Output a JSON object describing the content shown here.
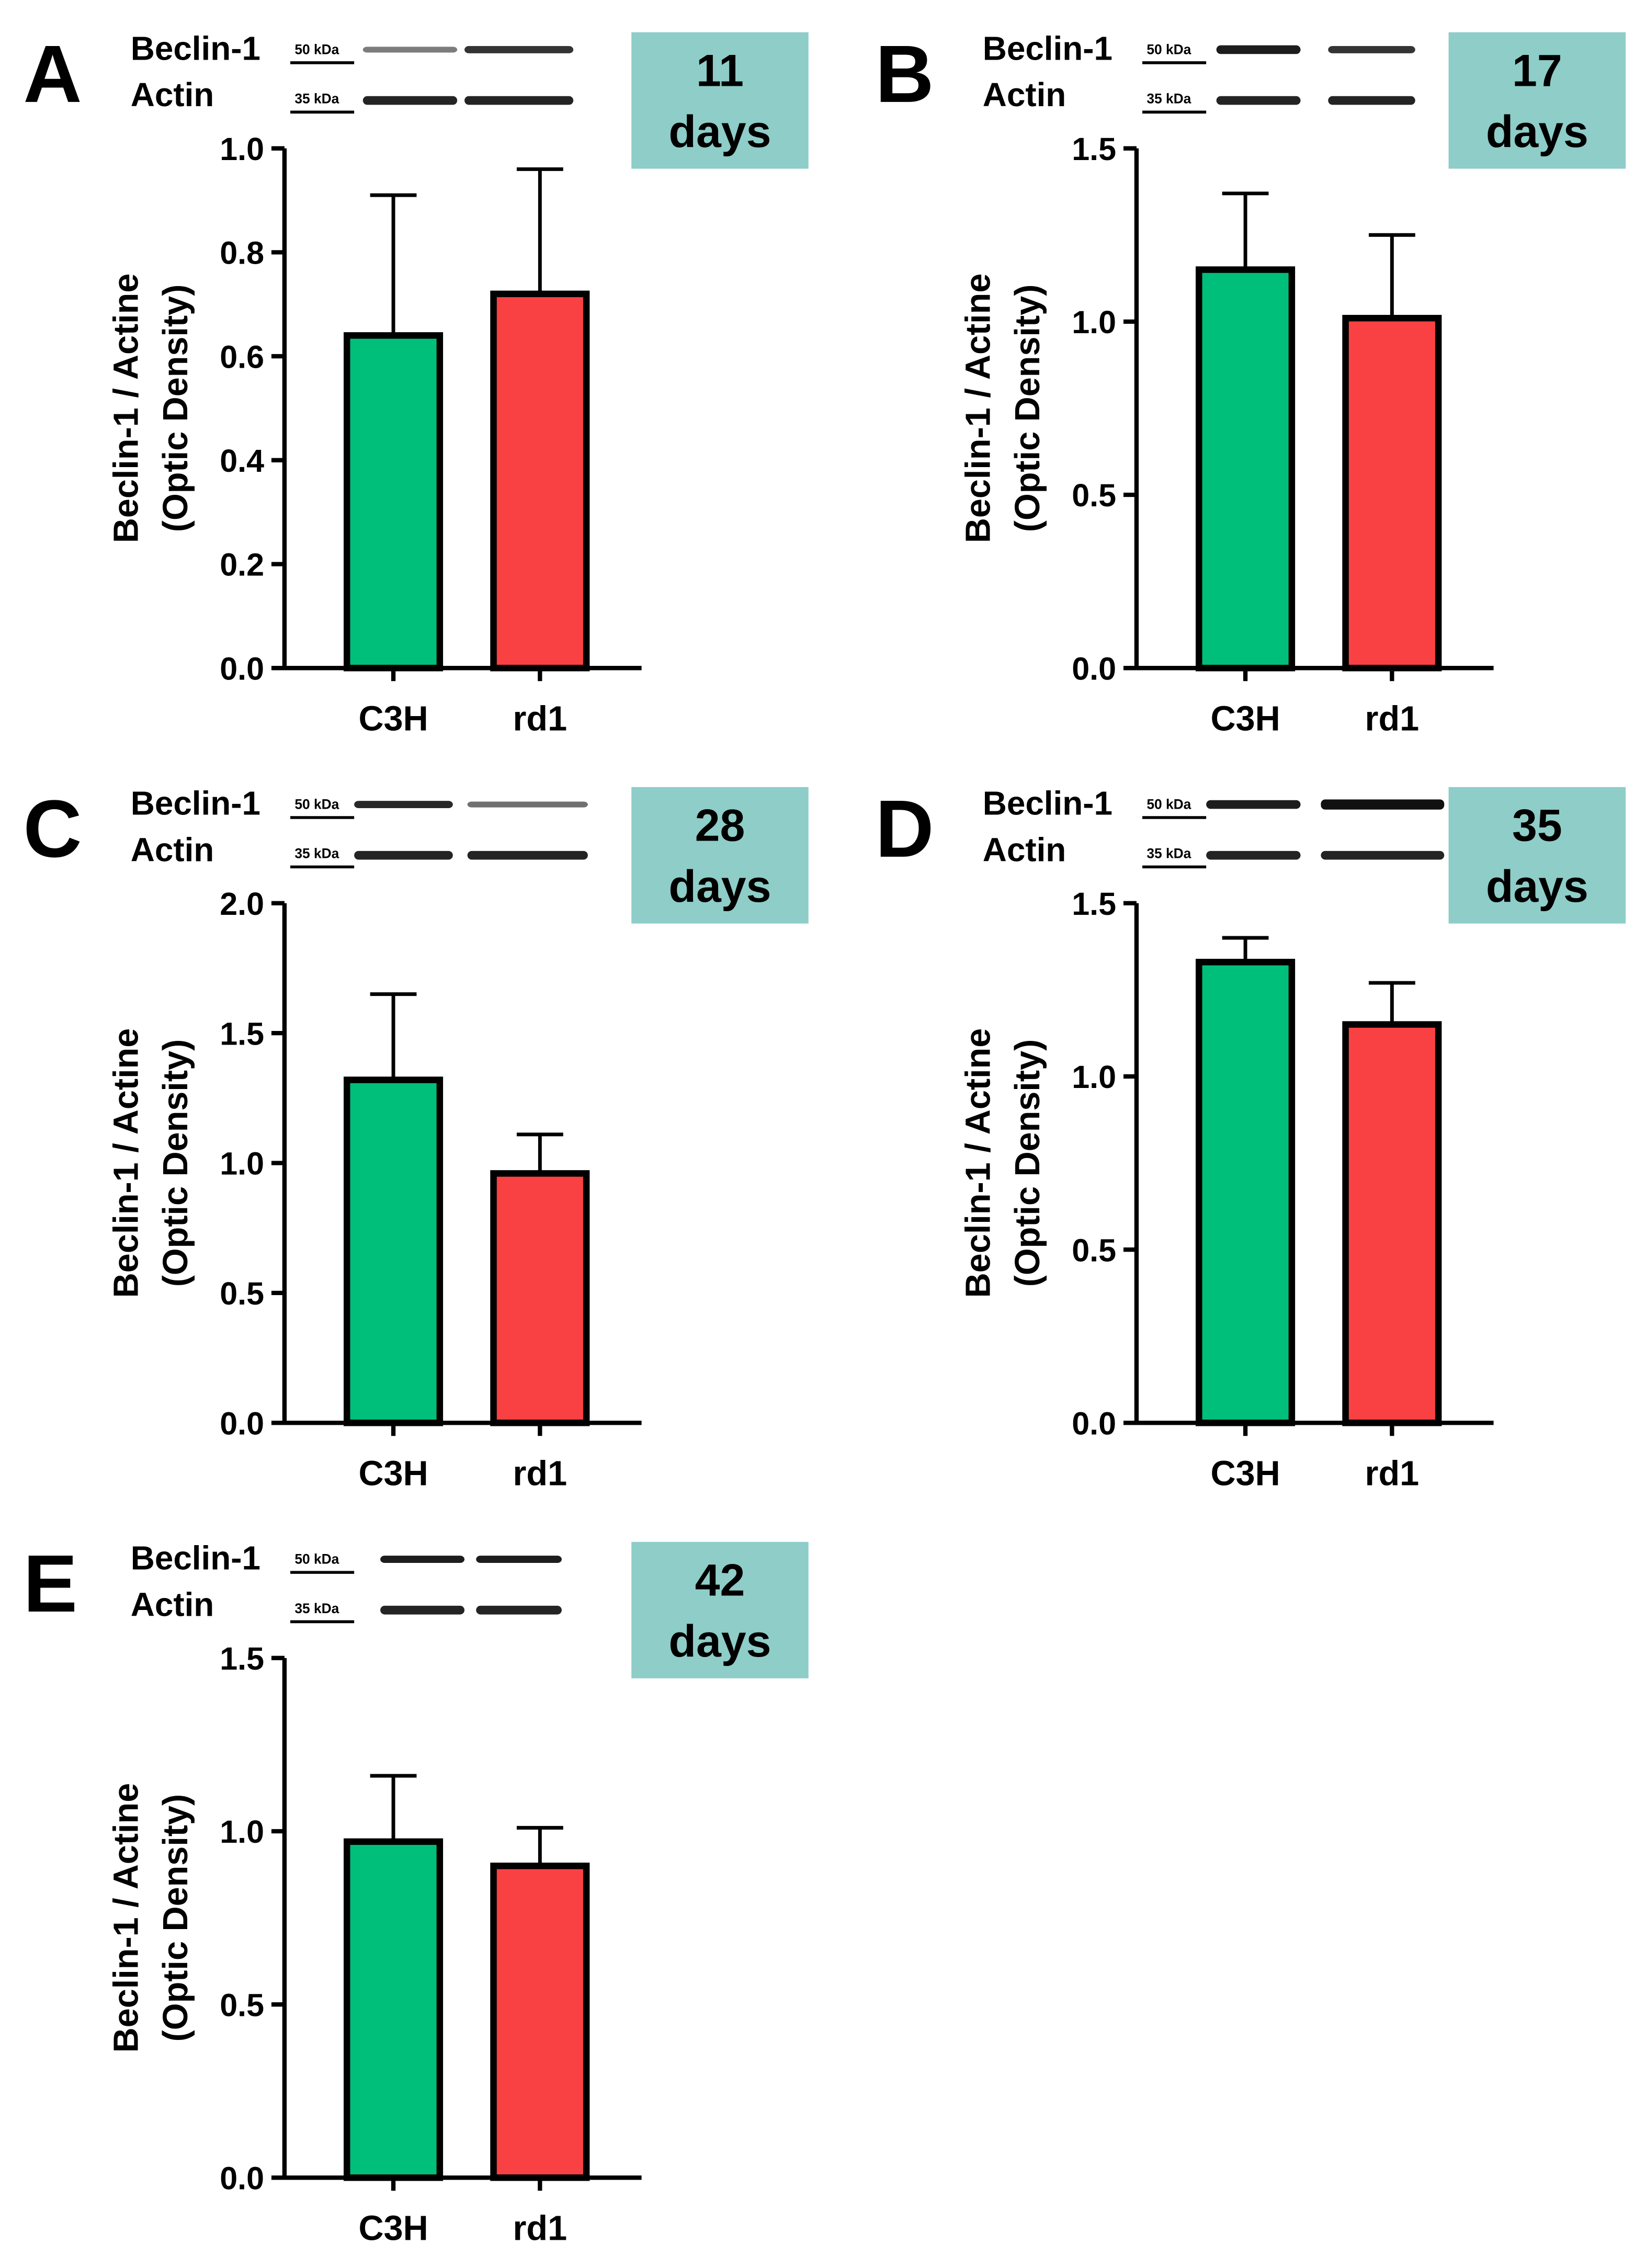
{
  "colors": {
    "c3h_bar": "#00bf7a",
    "rd1_bar": "#f94143",
    "day_box": "#8ecdc8",
    "ink": "#000000",
    "background": "#ffffff"
  },
  "chart_data": [
    {
      "type": "bar",
      "panel_letter": "A",
      "day_number": "11",
      "day_unit": "days",
      "blot": {
        "band1": "Beclin-1",
        "band2": "Actin",
        "marker1": "50 kDa",
        "marker2": "35 kDa"
      },
      "categories": [
        "C3H",
        "rd1"
      ],
      "values": [
        0.64,
        0.72
      ],
      "errors": [
        0.27,
        0.24
      ],
      "ylim": [
        0,
        1.0
      ],
      "yticks": [
        "0.0",
        "0.2",
        "0.4",
        "0.6",
        "0.8",
        "1.0"
      ],
      "ylabel_line1": "Beclin-1 / Actine",
      "ylabel_line2": "(Optic Density)"
    },
    {
      "type": "bar",
      "panel_letter": "B",
      "day_number": "17",
      "day_unit": "days",
      "blot": {
        "band1": "Beclin-1",
        "band2": "Actin",
        "marker1": "50 kDa",
        "marker2": "35 kDa"
      },
      "categories": [
        "C3H",
        "rd1"
      ],
      "values": [
        1.15,
        1.01
      ],
      "errors": [
        0.22,
        0.24
      ],
      "ylim": [
        0,
        1.5
      ],
      "yticks": [
        "0.0",
        "0.5",
        "1.0",
        "1.5"
      ],
      "ylabel_line1": "Beclin-1 / Actine",
      "ylabel_line2": "(Optic Density)"
    },
    {
      "type": "bar",
      "panel_letter": "C",
      "day_number": "28",
      "day_unit": "days",
      "blot": {
        "band1": "Beclin-1",
        "band2": "Actin",
        "marker1": "50 kDa",
        "marker2": "35 kDa"
      },
      "categories": [
        "C3H",
        "rd1"
      ],
      "values": [
        1.32,
        0.96
      ],
      "errors": [
        0.33,
        0.15
      ],
      "ylim": [
        0,
        2.0
      ],
      "yticks": [
        "0.0",
        "0.5",
        "1.0",
        "1.5",
        "2.0"
      ],
      "ylabel_line1": "Beclin-1 / Actine",
      "ylabel_line2": "(Optic Density)"
    },
    {
      "type": "bar",
      "panel_letter": "D",
      "day_number": "35",
      "day_unit": "days",
      "blot": {
        "band1": "Beclin-1",
        "band2": "Actin",
        "marker1": "50 kDa",
        "marker2": "35 kDa"
      },
      "categories": [
        "C3H",
        "rd1"
      ],
      "values": [
        1.33,
        1.15
      ],
      "errors": [
        0.07,
        0.12
      ],
      "ylim": [
        0,
        1.5
      ],
      "yticks": [
        "0.0",
        "0.5",
        "1.0",
        "1.5"
      ],
      "ylabel_line1": "Beclin-1 / Actine",
      "ylabel_line2": "(Optic Density)"
    },
    {
      "type": "bar",
      "panel_letter": "E",
      "day_number": "42",
      "day_unit": "days",
      "blot": {
        "band1": "Beclin-1",
        "band2": "Actin",
        "marker1": "50 kDa",
        "marker2": "35 kDa"
      },
      "categories": [
        "C3H",
        "rd1"
      ],
      "values": [
        0.97,
        0.9
      ],
      "errors": [
        0.19,
        0.11
      ],
      "ylim": [
        0,
        1.5
      ],
      "yticks": [
        "0.0",
        "0.5",
        "1.0",
        "1.5"
      ],
      "ylabel_line1": "Beclin-1 / Actine",
      "ylabel_line2": "(Optic Density)"
    }
  ]
}
